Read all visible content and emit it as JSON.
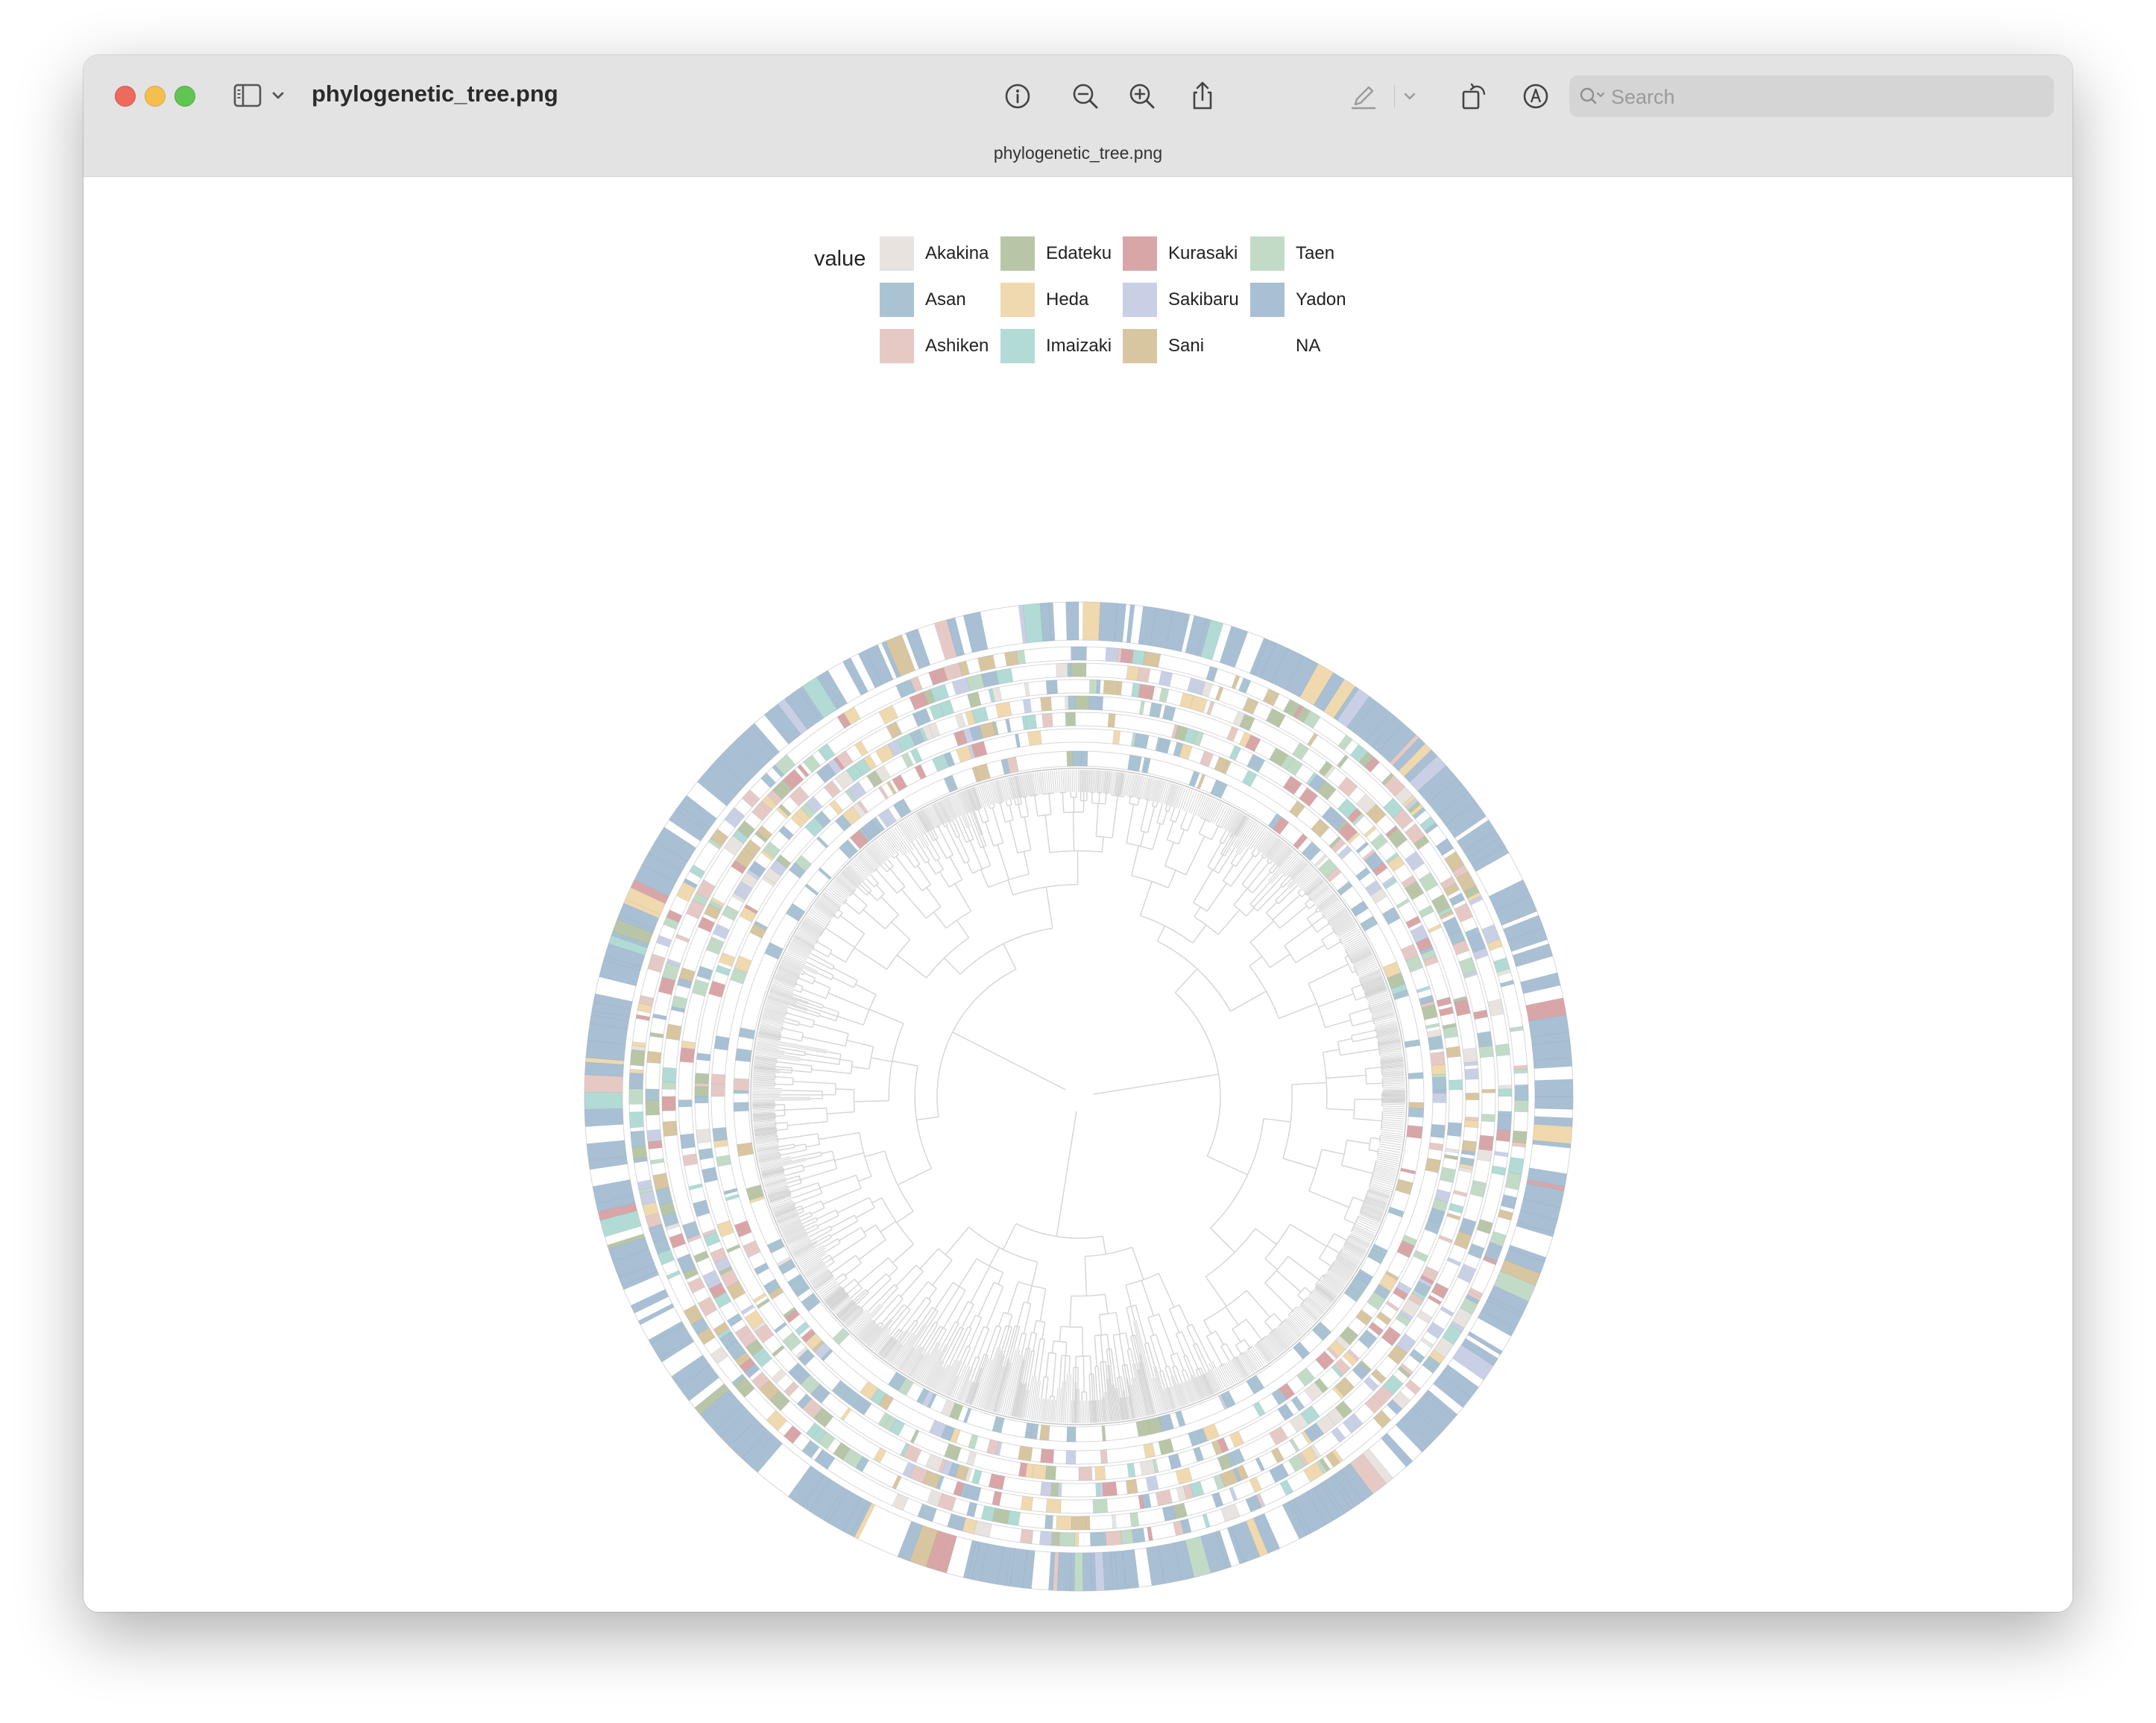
{
  "window": {
    "title": "phylogenetic_tree.png",
    "tab_title": "phylogenetic_tree.png"
  },
  "toolbar": {
    "icons": [
      "sidebar-toggle-icon",
      "chevron-down-icon",
      "info-icon",
      "zoom-out-icon",
      "zoom-in-icon",
      "share-icon",
      "markup-pen-icon",
      "chevron-down-icon",
      "rotate-icon",
      "markup-circle-icon",
      "redact-icon"
    ],
    "search_placeholder": "Search"
  },
  "legend": {
    "title": "value",
    "entries": [
      {
        "label": "Akakina",
        "color": "#e8e3df"
      },
      {
        "label": "Asan",
        "color": "#a9c3d3"
      },
      {
        "label": "Ashiken",
        "color": "#e6c9c5"
      },
      {
        "label": "Edateku",
        "color": "#b8c6a7"
      },
      {
        "label": "Heda",
        "color": "#f0d9ae"
      },
      {
        "label": "Imaizaki",
        "color": "#b1dbd4"
      },
      {
        "label": "Kurasaki",
        "color": "#d9a6a8"
      },
      {
        "label": "Sakibaru",
        "color": "#c9d0e6"
      },
      {
        "label": "Sani",
        "color": "#d8c6a1"
      },
      {
        "label": "Taen",
        "color": "#c2dbc7"
      },
      {
        "label": "Yadon",
        "color": "#a8bfd4"
      },
      {
        "label": "NA",
        "color": "#ffffff"
      }
    ]
  },
  "chart_data": {
    "type": "circular-phylogenetic-tree-heatmap",
    "legend_title": "value",
    "categories": [
      "Akakina",
      "Asan",
      "Ashiken",
      "Edateku",
      "Heda",
      "Imaizaki",
      "Kurasaki",
      "Sakibaru",
      "Sani",
      "Taen",
      "Yadon",
      "NA"
    ],
    "rings": 8,
    "tree_color": "#d4d4d4"
  }
}
